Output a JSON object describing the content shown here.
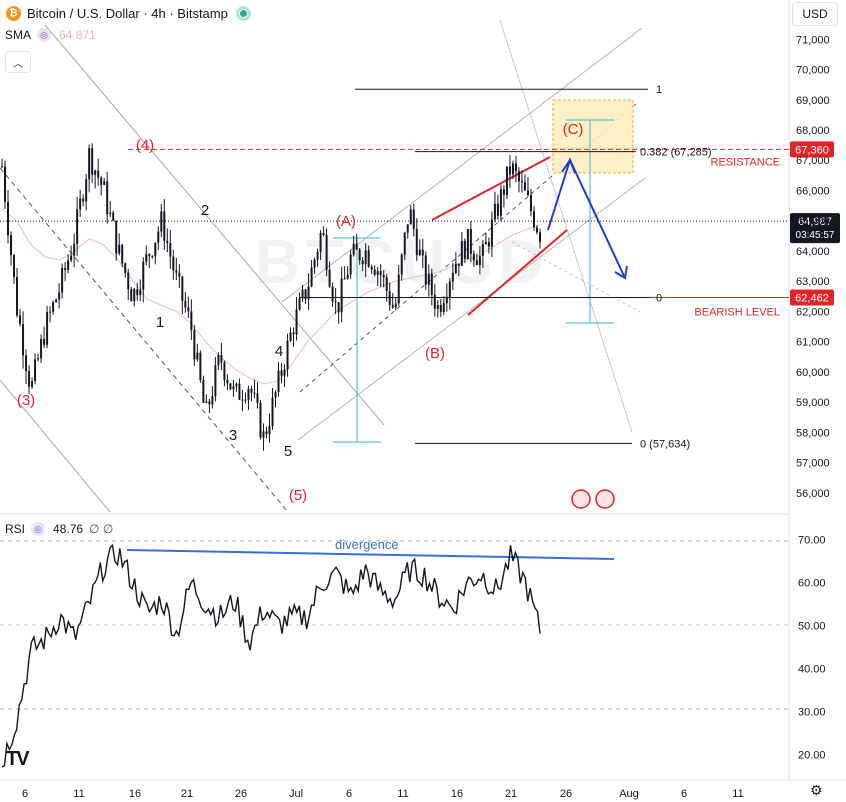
{
  "header": {
    "title": "Bitcoin / U.S. Dollar · 4h · Bitstamp",
    "coin_glyph": "₿",
    "sma_label": "SMA",
    "sma_value": "64,871",
    "currency": "USD",
    "rsi_label": "RSI",
    "rsi_value": "48.76",
    "rsi_empty": "∅  ∅"
  },
  "colors": {
    "candle": "#131722",
    "red": "#e0252a",
    "blue": "#1d3ecc",
    "cyan": "#3bb7c9",
    "sma": "#f2c4c4",
    "fib": "#131722",
    "box": "#fdeec0",
    "box_border": "#f0a020"
  },
  "chart_data": [
    {
      "type": "line",
      "ylim": [
        55300,
        72300
      ],
      "y_ticks": [
        56000,
        57000,
        58000,
        59000,
        60000,
        61000,
        62000,
        63000,
        64000,
        65000,
        66000,
        67000,
        68000,
        69000,
        70000,
        71000
      ],
      "x_tick_labels": [
        "6",
        "11",
        "16",
        "21",
        "26",
        "Jul",
        "6",
        "11",
        "16",
        "21",
        "26",
        "Aug",
        "6",
        "11"
      ],
      "series": [
        {
          "values": [
            66800,
            62200,
            59400,
            61500,
            62800,
            64500,
            67200,
            66000,
            64000,
            62500,
            63800,
            65000,
            63000,
            61500,
            58500,
            60500,
            59200,
            59600,
            57800,
            59600,
            61500,
            62800,
            64700,
            62000,
            63800,
            64000,
            63300,
            62000,
            65400,
            63300,
            62100,
            63500,
            64300,
            63700,
            65300,
            66800,
            65800,
            64600
          ]
        },
        {
          "name": "SMA",
          "values": [
            65400,
            65000,
            64200,
            63800,
            63700,
            64000,
            64400,
            64200,
            63700,
            63000,
            62400,
            62200,
            62000,
            61600,
            61000,
            60500,
            60100,
            59800,
            59600,
            59700,
            60300,
            61000,
            61500,
            62000,
            62300,
            62600,
            62800,
            63000,
            63100,
            63200,
            63300,
            63500,
            63700,
            63900,
            64200,
            64500,
            64700,
            64871
          ]
        }
      ],
      "current_price": {
        "value": "64,987",
        "countdown": "03:45:57"
      },
      "price_labels": [
        {
          "price": 67360,
          "text": "67,360"
        },
        {
          "price": 62462,
          "text": "62,462"
        }
      ],
      "level_labels": [
        {
          "price": 67360,
          "text": "RESISTANCE"
        },
        {
          "price": 62000,
          "text": "BEARISH LEVEL"
        }
      ],
      "fib_levels": [
        {
          "price": 69350,
          "text": "1"
        },
        {
          "price": 67285,
          "text": "0.382 (67,285)"
        },
        {
          "price": 62462,
          "text": "0"
        },
        {
          "price": 57634,
          "text": "0 (57,634)"
        }
      ],
      "wave_labels": [
        {
          "text": "(3)",
          "color": "red"
        },
        {
          "text": "(4)",
          "color": "red"
        },
        {
          "text": "1",
          "color": "black"
        },
        {
          "text": "2",
          "color": "black"
        },
        {
          "text": "3",
          "color": "black"
        },
        {
          "text": "4",
          "color": "black"
        },
        {
          "text": "5",
          "color": "black"
        },
        {
          "text": "(5)",
          "color": "red"
        },
        {
          "text": "(A)",
          "color": "red"
        },
        {
          "text": "(B)",
          "color": "red"
        },
        {
          "text": "(C)",
          "color": "red"
        }
      ]
    },
    {
      "type": "line",
      "ylim": [
        14,
        76
      ],
      "y_ticks": [
        20,
        30,
        40,
        50,
        60,
        70
      ],
      "series": [
        {
          "name": "RSI",
          "values": [
            18,
            28,
            44,
            47,
            52,
            47,
            55,
            64,
            67,
            60,
            53,
            56,
            48,
            60,
            55,
            52,
            56,
            46,
            54,
            50,
            52,
            52,
            60,
            62,
            57,
            63,
            58,
            56,
            63,
            62,
            57,
            54,
            60,
            62,
            58,
            66,
            60,
            49
          ]
        }
      ],
      "annotation": "divergence"
    }
  ]
}
